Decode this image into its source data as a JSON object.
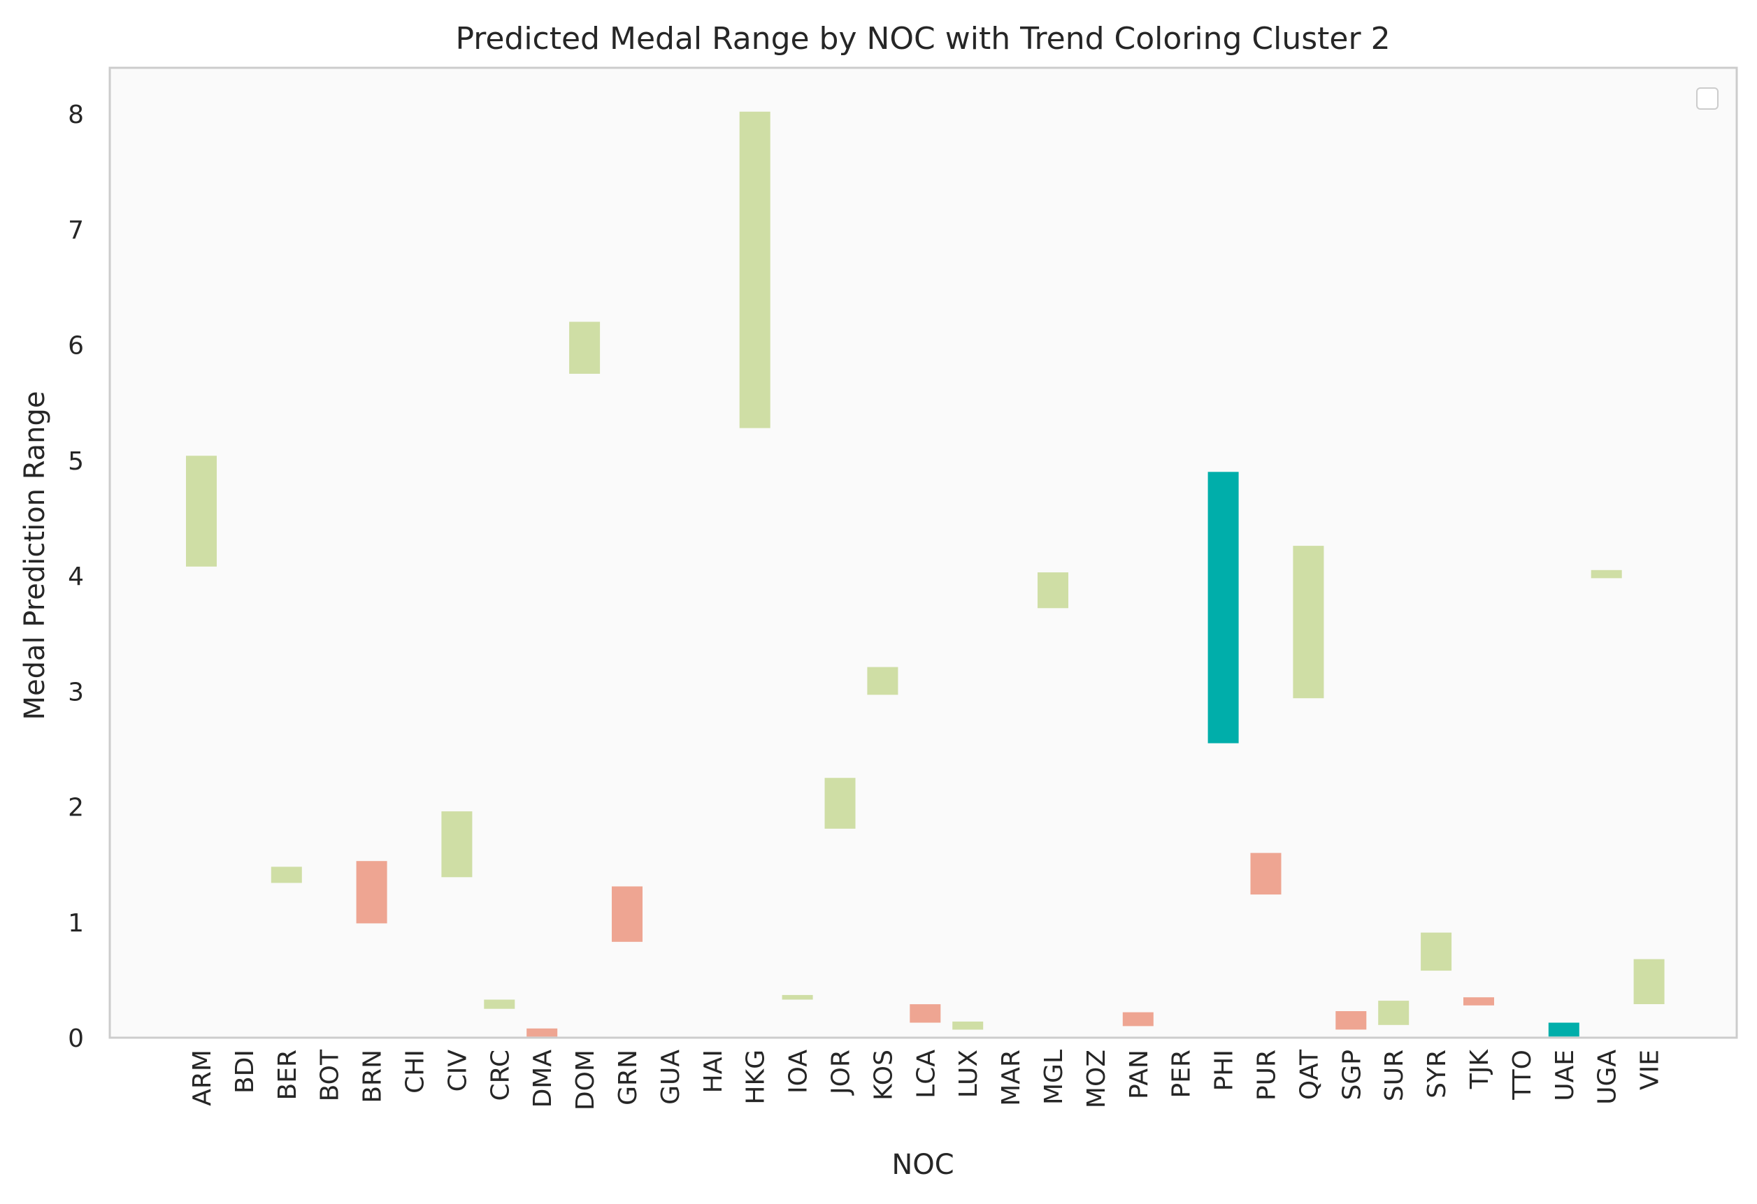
{
  "chart_data": {
    "type": "bar",
    "title": "Predicted Medal Range by NOC with Trend Coloring Cluster 2",
    "xlabel": "NOC",
    "ylabel": "Medal Prediction Range",
    "ylim": [
      0,
      8.4
    ],
    "yticks": [
      0,
      1,
      2,
      3,
      4,
      5,
      6,
      7,
      8
    ],
    "grid": false,
    "legend": {
      "placement": "top-right",
      "entries": []
    },
    "categories": [
      "ARM",
      "BDI",
      "BER",
      "BOT",
      "BRN",
      "CHI",
      "CIV",
      "CRC",
      "DMA",
      "DOM",
      "GRN",
      "GUA",
      "HAI",
      "HKG",
      "IOA",
      "JOR",
      "KOS",
      "LCA",
      "LUX",
      "MAR",
      "MGL",
      "MOZ",
      "PAN",
      "PER",
      "PHI",
      "PUR",
      "QAT",
      "SGP",
      "SUR",
      "SYR",
      "TJK",
      "TTO",
      "UAE",
      "UGA",
      "VIE"
    ],
    "ranges": [
      {
        "noc": "ARM",
        "low": 4.08,
        "high": 5.04,
        "trend": "up"
      },
      {
        "noc": "BDI",
        "low": 0,
        "high": 0,
        "trend": "none"
      },
      {
        "noc": "BER",
        "low": 1.34,
        "high": 1.48,
        "trend": "up"
      },
      {
        "noc": "BOT",
        "low": 0,
        "high": 0,
        "trend": "none"
      },
      {
        "noc": "BRN",
        "low": 0.99,
        "high": 1.53,
        "trend": "down"
      },
      {
        "noc": "CHI",
        "low": 0,
        "high": 0,
        "trend": "none"
      },
      {
        "noc": "CIV",
        "low": 1.39,
        "high": 1.96,
        "trend": "up"
      },
      {
        "noc": "CRC",
        "low": 0.25,
        "high": 0.33,
        "trend": "up"
      },
      {
        "noc": "DMA",
        "low": 0.01,
        "high": 0.08,
        "trend": "down"
      },
      {
        "noc": "DOM",
        "low": 5.75,
        "high": 6.2,
        "trend": "up"
      },
      {
        "noc": "GRN",
        "low": 0.83,
        "high": 1.31,
        "trend": "down"
      },
      {
        "noc": "GUA",
        "low": 0,
        "high": 0,
        "trend": "none"
      },
      {
        "noc": "HAI",
        "low": 0,
        "high": 0,
        "trend": "none"
      },
      {
        "noc": "HKG",
        "low": 5.28,
        "high": 8.02,
        "trend": "up"
      },
      {
        "noc": "IOA",
        "low": 0.33,
        "high": 0.37,
        "trend": "up"
      },
      {
        "noc": "JOR",
        "low": 1.81,
        "high": 2.25,
        "trend": "up"
      },
      {
        "noc": "KOS",
        "low": 2.97,
        "high": 3.21,
        "trend": "up"
      },
      {
        "noc": "LCA",
        "low": 0.13,
        "high": 0.29,
        "trend": "down"
      },
      {
        "noc": "LUX",
        "low": 0.07,
        "high": 0.14,
        "trend": "up"
      },
      {
        "noc": "MAR",
        "low": 0,
        "high": 0,
        "trend": "none"
      },
      {
        "noc": "MGL",
        "low": 3.72,
        "high": 4.03,
        "trend": "up"
      },
      {
        "noc": "MOZ",
        "low": 0,
        "high": 0,
        "trend": "none"
      },
      {
        "noc": "PAN",
        "low": 0.1,
        "high": 0.22,
        "trend": "down"
      },
      {
        "noc": "PER",
        "low": 0,
        "high": 0,
        "trend": "none"
      },
      {
        "noc": "PHI",
        "low": 2.55,
        "high": 4.9,
        "trend": "strong"
      },
      {
        "noc": "PUR",
        "low": 1.24,
        "high": 1.6,
        "trend": "down"
      },
      {
        "noc": "QAT",
        "low": 2.94,
        "high": 4.26,
        "trend": "up"
      },
      {
        "noc": "SGP",
        "low": 0.07,
        "high": 0.23,
        "trend": "down"
      },
      {
        "noc": "SUR",
        "low": 0.11,
        "high": 0.32,
        "trend": "up"
      },
      {
        "noc": "SYR",
        "low": 0.58,
        "high": 0.91,
        "trend": "up"
      },
      {
        "noc": "TJK",
        "low": 0.28,
        "high": 0.35,
        "trend": "down"
      },
      {
        "noc": "TTO",
        "low": 0,
        "high": 0,
        "trend": "none"
      },
      {
        "noc": "UAE",
        "low": 0.01,
        "high": 0.13,
        "trend": "strong"
      },
      {
        "noc": "UGA",
        "low": 3.98,
        "high": 4.05,
        "trend": "up"
      },
      {
        "noc": "VIE",
        "low": 0.29,
        "high": 0.68,
        "trend": "up"
      }
    ],
    "colors": {
      "up": "#cfdea5",
      "down": "#eea592",
      "strong": "#00aeaa",
      "none": "transparent",
      "plot_bg": "#fafafa",
      "spine": "#cccccc",
      "text": "#262626"
    }
  }
}
